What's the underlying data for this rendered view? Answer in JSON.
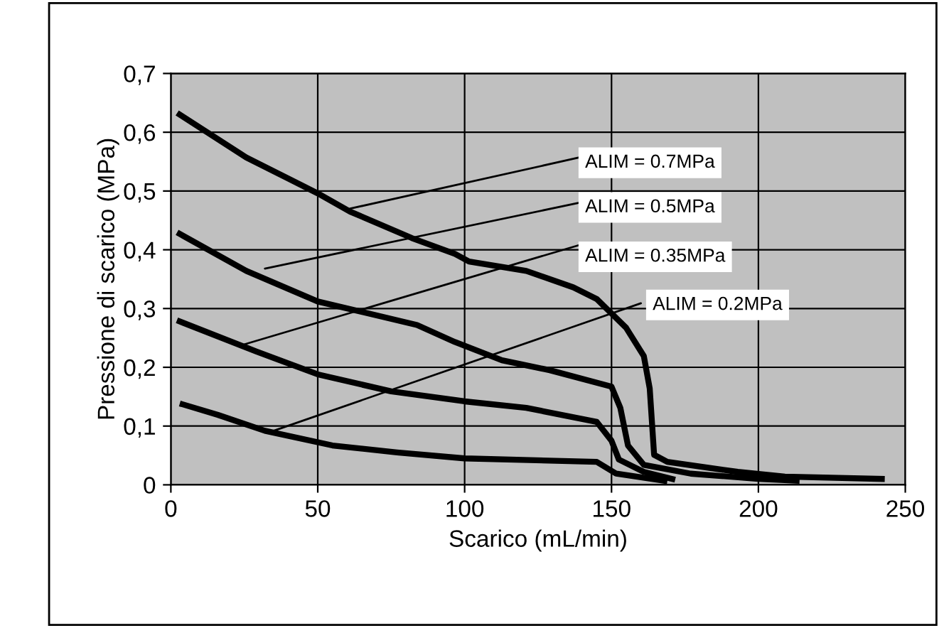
{
  "chart_data": {
    "type": "line",
    "xlabel": "Scarico (mL/min)",
    "ylabel": "Pressione di scarico (MPa)",
    "xlim": [
      0,
      250
    ],
    "xticks": [
      0,
      50,
      100,
      150,
      200,
      250
    ],
    "ylim": [
      0,
      0.7
    ],
    "yticks": [
      0,
      {
        "value": 0.1,
        "label": "0,1"
      },
      {
        "value": 0.2,
        "label": "0,2"
      },
      {
        "value": 0.3,
        "label": "0,3"
      },
      {
        "value": 0.4,
        "label": "0,4"
      },
      {
        "value": 0.5,
        "label": "0,5"
      },
      {
        "value": 0.6,
        "label": "0,6"
      },
      {
        "value": 0.7,
        "label": "0,7"
      }
    ],
    "grid": true,
    "marker": "none",
    "line_style": "solid",
    "series": [
      {
        "color": "#000000",
        "x": [
          3,
          25.7,
          50,
          61,
          82,
          96.7,
          101.5,
          121,
          137,
          145,
          155,
          161,
          163,
          164.5,
          169,
          193,
          209,
          242
        ],
        "values": [
          0.63,
          0.557,
          0.496,
          0.465,
          0.42,
          0.393,
          0.38,
          0.364,
          0.336,
          0.316,
          0.267,
          0.219,
          0.164,
          0.051,
          0.039,
          0.022,
          0.014,
          0.01
        ]
      },
      {
        "color": "#000000",
        "x": [
          3,
          25.7,
          50,
          83.8,
          96.7,
          112.7,
          129,
          150,
          153,
          155.6,
          161,
          177,
          200,
          213
        ],
        "values": [
          0.427,
          0.364,
          0.312,
          0.272,
          0.243,
          0.212,
          0.195,
          0.167,
          0.131,
          0.067,
          0.034,
          0.019,
          0.01,
          0.007
        ]
      },
      {
        "color": "#000000",
        "x": [
          3,
          29,
          50,
          75,
          100,
          121,
          145,
          150,
          152.5,
          161,
          170.7
        ],
        "values": [
          0.278,
          0.227,
          0.188,
          0.159,
          0.142,
          0.131,
          0.107,
          0.075,
          0.043,
          0.022,
          0.01
        ]
      },
      {
        "color": "#000000",
        "x": [
          4,
          16,
          32,
          55,
          77,
          100,
          145,
          151.6,
          168
        ],
        "values": [
          0.137,
          0.119,
          0.092,
          0.067,
          0.055,
          0.045,
          0.039,
          0.019,
          0.007
        ]
      }
    ],
    "annotations": [
      {
        "text": "ALIM = 0.7MPa",
        "x": 61,
        "y": 0.47
      },
      {
        "text": "ALIM = 0.5MPa",
        "x": 32,
        "y": 0.368
      },
      {
        "text": "ALIM = 0.35MPa",
        "x": 25,
        "y": 0.239
      },
      {
        "text": "ALIM = 0.2MPa",
        "x": 35,
        "y": 0.092
      }
    ]
  }
}
